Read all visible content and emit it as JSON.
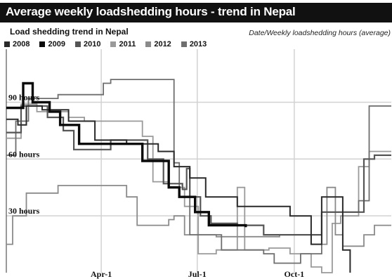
{
  "header": {
    "title": "Average weekly loadshedding hours - trend in Nepal",
    "subtitle": "Load shedding trend in Nepal",
    "source_note": "Date/Weekly loadshedding  hours (average)"
  },
  "chart_data": {
    "type": "line",
    "title": "Average weekly loadshedding hours - trend in Nepal",
    "subtitle": "Load shedding trend in Nepal",
    "xlabel": "",
    "ylabel": "",
    "x_unit": "day of year",
    "x_ticks": [
      {
        "label": "Apr-1",
        "value": 91
      },
      {
        "label": "Jul-1",
        "value": 182
      },
      {
        "label": "Oct-1",
        "value": 274
      }
    ],
    "y_ticks": [
      {
        "label": "30 hours",
        "value": 30
      },
      {
        "label": "60 hours",
        "value": 60
      },
      {
        "label": "90 hours",
        "value": 90
      }
    ],
    "xlim": [
      1,
      366
    ],
    "ylim": [
      0,
      118
    ],
    "grid": true,
    "legend_position": "top-left",
    "series": [
      {
        "name": "2008",
        "color": "#2a2a2a",
        "points": [
          [
            1,
            81
          ],
          [
            12,
            81
          ],
          [
            12,
            78
          ],
          [
            20,
            78
          ],
          [
            20,
            88
          ],
          [
            35,
            88
          ],
          [
            35,
            86
          ],
          [
            60,
            86
          ],
          [
            60,
            80
          ],
          [
            85,
            80
          ],
          [
            85,
            70
          ],
          [
            115,
            70
          ],
          [
            115,
            68
          ],
          [
            145,
            68
          ],
          [
            145,
            64
          ],
          [
            160,
            64
          ],
          [
            160,
            56
          ],
          [
            175,
            56
          ],
          [
            175,
            50
          ],
          [
            190,
            50
          ],
          [
            190,
            40
          ],
          [
            220,
            40
          ],
          [
            220,
            35
          ],
          [
            270,
            35
          ],
          [
            270,
            30
          ],
          [
            290,
            30
          ],
          [
            290,
            15
          ],
          [
            300,
            15
          ],
          [
            300,
            40
          ],
          [
            320,
            40
          ],
          [
            320,
            12
          ],
          [
            327,
            12
          ],
          [
            327,
            0
          ]
        ]
      },
      {
        "name": "2009",
        "color": "#0a0a0a",
        "points": [
          [
            1,
            87
          ],
          [
            17,
            87
          ],
          [
            17,
            100
          ],
          [
            26,
            100
          ],
          [
            26,
            90
          ],
          [
            42,
            90
          ],
          [
            42,
            85
          ],
          [
            52,
            85
          ],
          [
            52,
            78
          ],
          [
            70,
            78
          ],
          [
            70,
            68
          ],
          [
            130,
            68
          ],
          [
            130,
            59
          ],
          [
            155,
            59
          ],
          [
            155,
            45
          ],
          [
            165,
            45
          ],
          [
            165,
            40
          ],
          [
            180,
            40
          ],
          [
            180,
            32
          ],
          [
            193,
            32
          ],
          [
            193,
            25
          ],
          [
            228,
            25
          ],
          [
            228,
            24
          ]
        ]
      },
      {
        "name": "2010",
        "color": "#555555",
        "points": [
          [
            1,
            74
          ],
          [
            15,
            74
          ],
          [
            15,
            88
          ],
          [
            40,
            88
          ],
          [
            40,
            82
          ],
          [
            55,
            82
          ],
          [
            55,
            75
          ],
          [
            65,
            75
          ],
          [
            65,
            65
          ],
          [
            100,
            65
          ],
          [
            100,
            70
          ],
          [
            135,
            70
          ],
          [
            135,
            60
          ],
          [
            150,
            60
          ],
          [
            150,
            47
          ],
          [
            168,
            47
          ],
          [
            168,
            44
          ],
          [
            172,
            44
          ],
          [
            172,
            55
          ],
          [
            175,
            55
          ],
          [
            175,
            40
          ],
          [
            185,
            40
          ],
          [
            185,
            30
          ],
          [
            195,
            30
          ],
          [
            195,
            26
          ],
          [
            220,
            26
          ],
          [
            220,
            25
          ],
          [
            245,
            25
          ],
          [
            245,
            20
          ],
          [
            300,
            20
          ],
          [
            300,
            32
          ],
          [
            340,
            32
          ],
          [
            340,
            60
          ],
          [
            350,
            60
          ],
          [
            350,
            62
          ],
          [
            366,
            62
          ]
        ]
      },
      {
        "name": "2011",
        "color": "#9a9a9a",
        "points": [
          [
            1,
            71
          ],
          [
            15,
            71
          ],
          [
            15,
            89
          ],
          [
            30,
            89
          ],
          [
            30,
            85
          ],
          [
            60,
            85
          ],
          [
            60,
            82
          ],
          [
            75,
            82
          ],
          [
            75,
            80
          ],
          [
            130,
            80
          ],
          [
            130,
            72
          ],
          [
            140,
            72
          ],
          [
            140,
            48
          ],
          [
            155,
            48
          ],
          [
            155,
            45
          ],
          [
            170,
            45
          ],
          [
            170,
            35
          ],
          [
            183,
            35
          ],
          [
            183,
            10
          ],
          [
            200,
            10
          ],
          [
            200,
            12
          ],
          [
            220,
            12
          ],
          [
            220,
            45
          ],
          [
            227,
            45
          ],
          [
            227,
            12
          ],
          [
            250,
            12
          ],
          [
            250,
            13
          ],
          [
            270,
            13
          ],
          [
            270,
            10
          ],
          [
            290,
            10
          ],
          [
            290,
            3
          ],
          [
            300,
            3
          ],
          [
            300,
            0
          ],
          [
            310,
            0
          ],
          [
            310,
            26
          ],
          [
            318,
            26
          ],
          [
            318,
            30
          ],
          [
            335,
            30
          ],
          [
            335,
            56
          ],
          [
            345,
            56
          ],
          [
            345,
            64
          ],
          [
            366,
            64
          ]
        ]
      },
      {
        "name": "2012",
        "color": "#8a8a8a",
        "points": [
          [
            1,
            15
          ],
          [
            7,
            15
          ],
          [
            7,
            30
          ],
          [
            20,
            30
          ],
          [
            20,
            42
          ],
          [
            50,
            42
          ],
          [
            50,
            46
          ],
          [
            115,
            46
          ],
          [
            115,
            40
          ],
          [
            125,
            40
          ],
          [
            125,
            25
          ],
          [
            155,
            25
          ],
          [
            155,
            28
          ],
          [
            160,
            28
          ],
          [
            160,
            30
          ],
          [
            170,
            30
          ],
          [
            170,
            20
          ],
          [
            200,
            20
          ],
          [
            200,
            19
          ],
          [
            260,
            19
          ],
          [
            260,
            20
          ],
          [
            290,
            20
          ],
          [
            290,
            15
          ],
          [
            305,
            15
          ],
          [
            305,
            45
          ],
          [
            313,
            45
          ],
          [
            313,
            20
          ],
          [
            320,
            20
          ],
          [
            320,
            14
          ],
          [
            340,
            14
          ],
          [
            340,
            20
          ],
          [
            350,
            20
          ],
          [
            350,
            25
          ],
          [
            366,
            25
          ]
        ]
      },
      {
        "name": "2013",
        "color": "#6e6e6e",
        "points": [
          [
            1,
            62
          ],
          [
            10,
            62
          ],
          [
            10,
            80
          ],
          [
            22,
            80
          ],
          [
            22,
            92
          ],
          [
            50,
            92
          ],
          [
            50,
            94
          ],
          [
            93,
            94
          ],
          [
            93,
            100
          ],
          [
            100,
            100
          ],
          [
            100,
            102
          ],
          [
            160,
            102
          ],
          [
            160,
            58
          ],
          [
            165,
            58
          ],
          [
            165,
            40
          ],
          [
            175,
            40
          ],
          [
            175,
            20
          ],
          [
            205,
            20
          ],
          [
            205,
            12
          ],
          [
            245,
            12
          ],
          [
            245,
            10
          ],
          [
            255,
            10
          ],
          [
            255,
            5
          ],
          [
            280,
            5
          ],
          [
            280,
            10
          ],
          [
            300,
            10
          ],
          [
            300,
            32
          ],
          [
            335,
            32
          ],
          [
            335,
            38
          ],
          [
            345,
            38
          ],
          [
            345,
            88
          ],
          [
            366,
            88
          ]
        ]
      }
    ]
  }
}
